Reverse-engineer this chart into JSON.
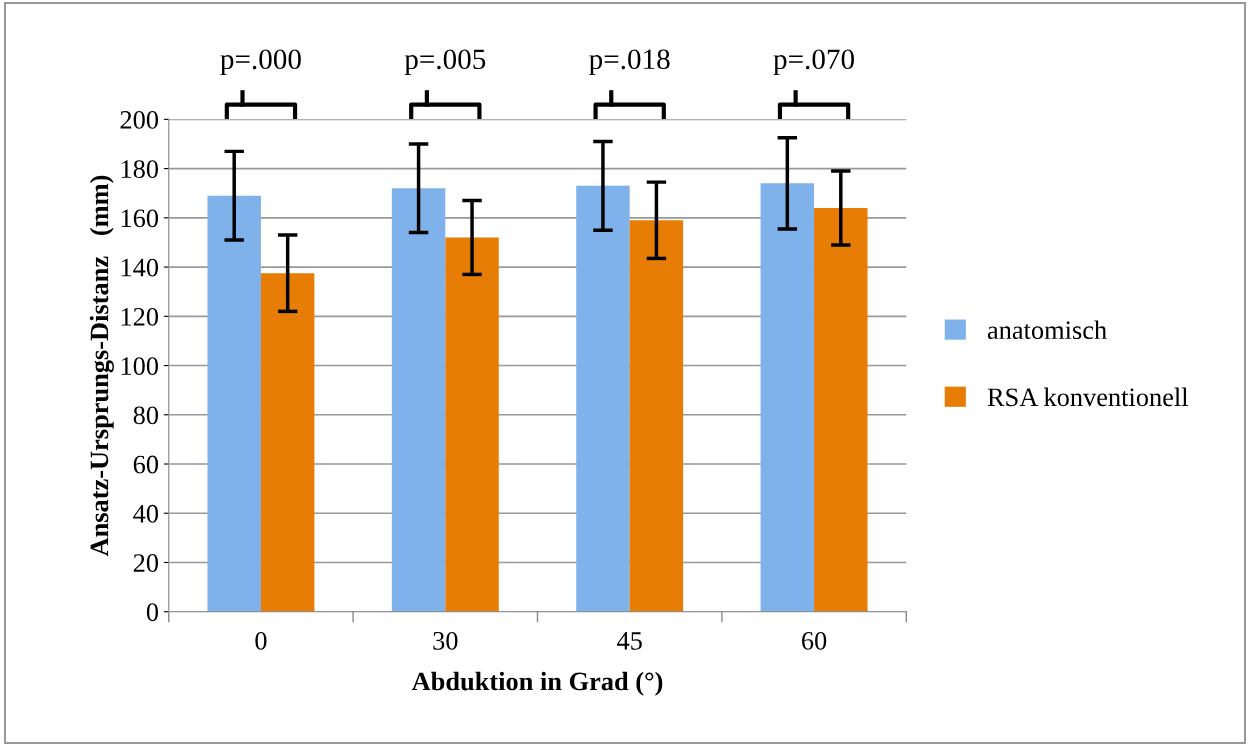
{
  "chart_data": {
    "type": "bar",
    "xlabel": "Abduktion in Grad (°)",
    "ylabel": "Ansatz-Ursprungs-Distanz   (mm)",
    "categories": [
      "0",
      "30",
      "45",
      "60"
    ],
    "series": [
      {
        "name": "anatomisch",
        "color": "#7fb1ea",
        "values": [
          169,
          172,
          173,
          174
        ],
        "errors": [
          18,
          18,
          18,
          18.5
        ]
      },
      {
        "name": "RSA konventionell",
        "color": "#e87d06",
        "values": [
          137.5,
          152,
          159,
          164
        ],
        "errors": [
          15.5,
          15,
          15.5,
          15
        ]
      }
    ],
    "ylim": [
      0,
      200
    ],
    "yticks": [
      0,
      20,
      40,
      60,
      80,
      100,
      120,
      140,
      160,
      180,
      200
    ],
    "grid": "y",
    "legend": "right",
    "annotations": [
      "p=.000",
      "p=.005",
      "p=.018",
      "p=.070"
    ]
  }
}
